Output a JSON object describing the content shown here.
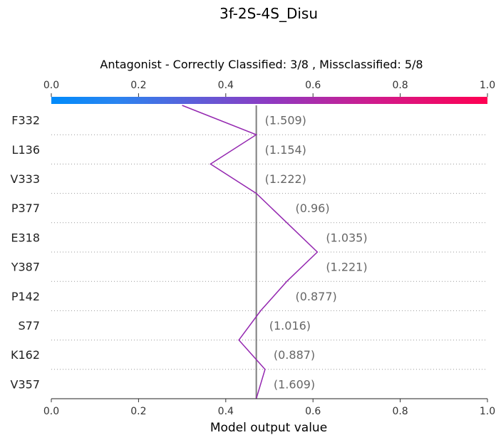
{
  "chart_data": {
    "type": "line",
    "title": "3f-2S-4S_Disu",
    "subtitle": "Antagonist - Correctly Classified: 3/8 , Missclassified: 5/8",
    "xlabel": "Model output value",
    "xlim": [
      0.0,
      1.0
    ],
    "xticks": [
      "0.0",
      "0.2",
      "0.4",
      "0.6",
      "0.8",
      "1.0"
    ],
    "base_value": 0.47,
    "start_value": 0.47,
    "features": [
      {
        "name": "F332",
        "value_label": "(1.509)",
        "output": 0.3
      },
      {
        "name": "L136",
        "value_label": "(1.154)",
        "output": 0.47
      },
      {
        "name": "V333",
        "value_label": "(1.222)",
        "output": 0.365
      },
      {
        "name": "P377",
        "value_label": "(0.96)",
        "output": 0.47
      },
      {
        "name": "E318",
        "value_label": "(1.035)",
        "output": 0.54
      },
      {
        "name": "Y387",
        "value_label": "(1.221)",
        "output": 0.61
      },
      {
        "name": "P142",
        "value_label": "(0.877)",
        "output": 0.54
      },
      {
        "name": "S77",
        "value_label": "(1.016)",
        "output": 0.48
      },
      {
        "name": "K162",
        "value_label": "(0.887)",
        "output": 0.43
      },
      {
        "name": "V357",
        "value_label": "(1.609)",
        "output": 0.49
      }
    ],
    "grid": false,
    "colormap": [
      "#008bfb",
      "#8e3ac2",
      "#ff0052"
    ],
    "line_color": "#9427b0",
    "base_line_color": "#7f7f7f"
  }
}
